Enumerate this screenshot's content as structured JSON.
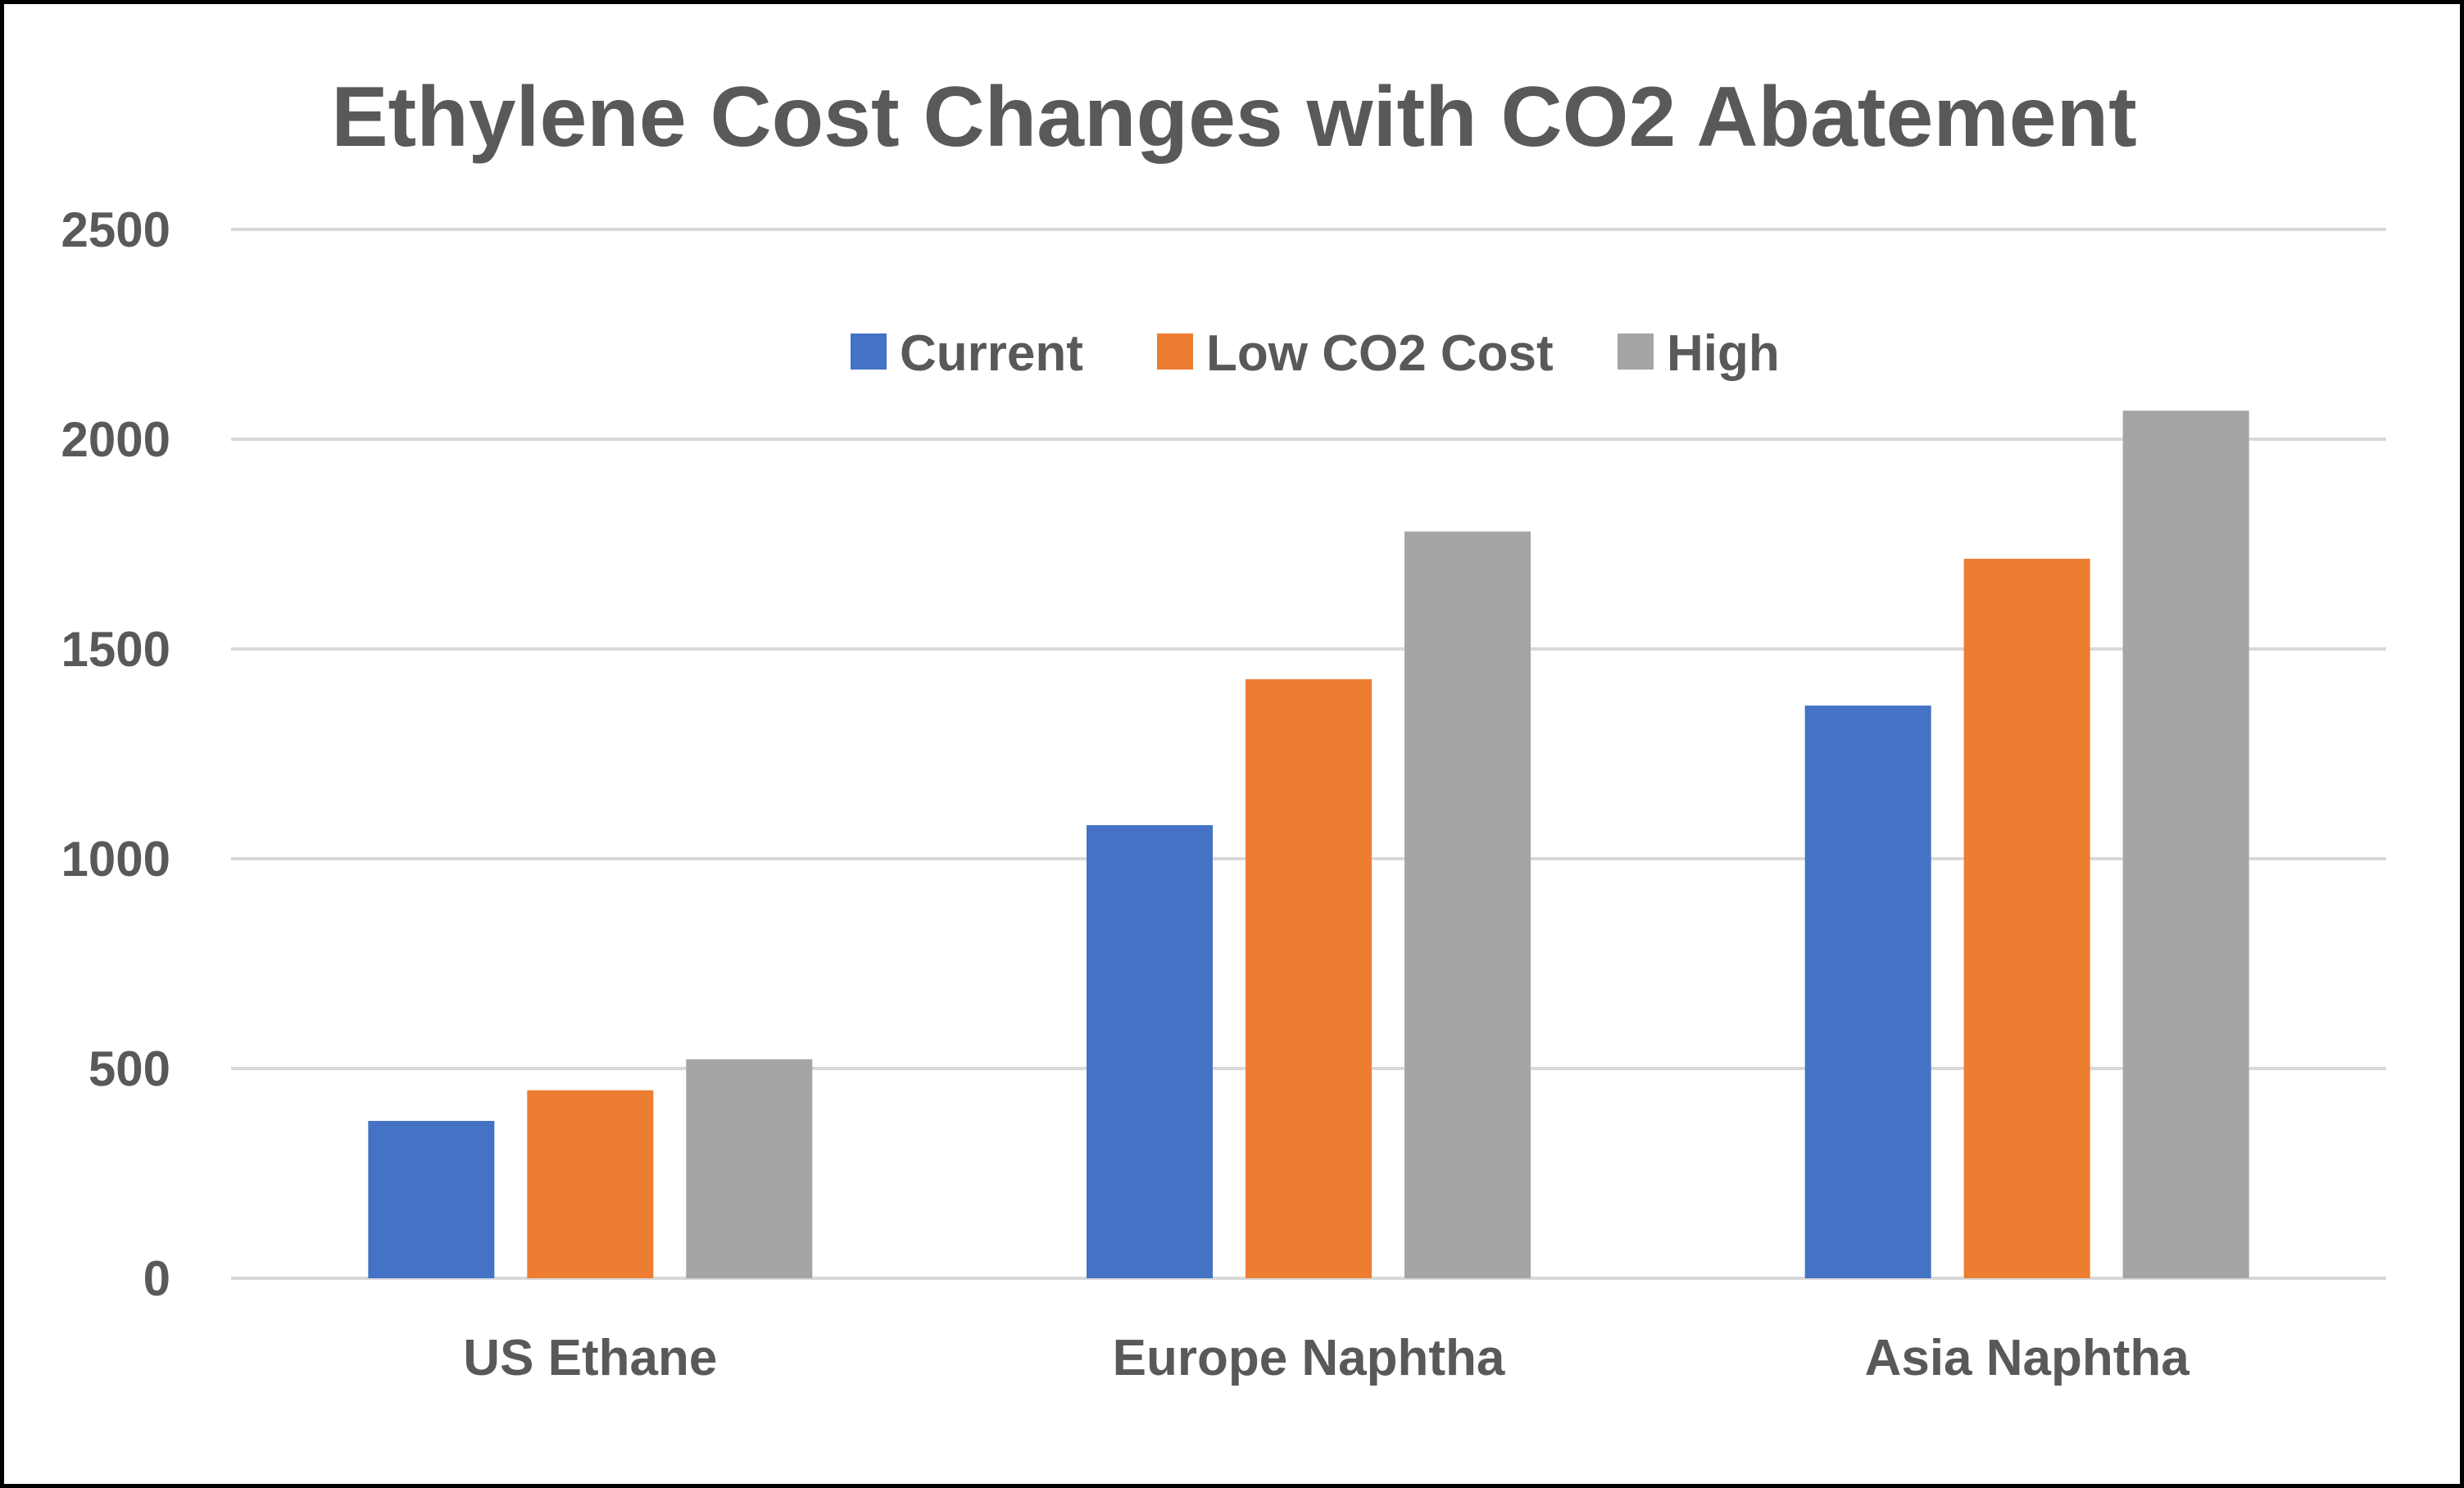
{
  "chart_data": {
    "type": "bar",
    "title": "Ethylene Cost Changes with CO2 Abatement",
    "xlabel": "",
    "ylabel": "",
    "categories": [
      "US Ethane",
      "Europe Naphtha",
      "Asia Naphtha"
    ],
    "series": [
      {
        "name": "Current",
        "color": "#4472C4",
        "values": [
          375,
          1080,
          1365
        ]
      },
      {
        "name": "Low CO2 Cost",
        "color": "#ED7D31",
        "values": [
          448,
          1428,
          1715
        ]
      },
      {
        "name": "High",
        "color": "#A5A5A5",
        "values": [
          522,
          1780,
          2068
        ]
      }
    ],
    "ylim": [
      0,
      2500
    ],
    "yticks": [
      0,
      500,
      1000,
      1500,
      2000,
      2500
    ],
    "grid": true,
    "legend_position": "top-center"
  },
  "colors": {
    "gridline": "#D9D9D9",
    "text": "#595959",
    "border": "#000000"
  }
}
